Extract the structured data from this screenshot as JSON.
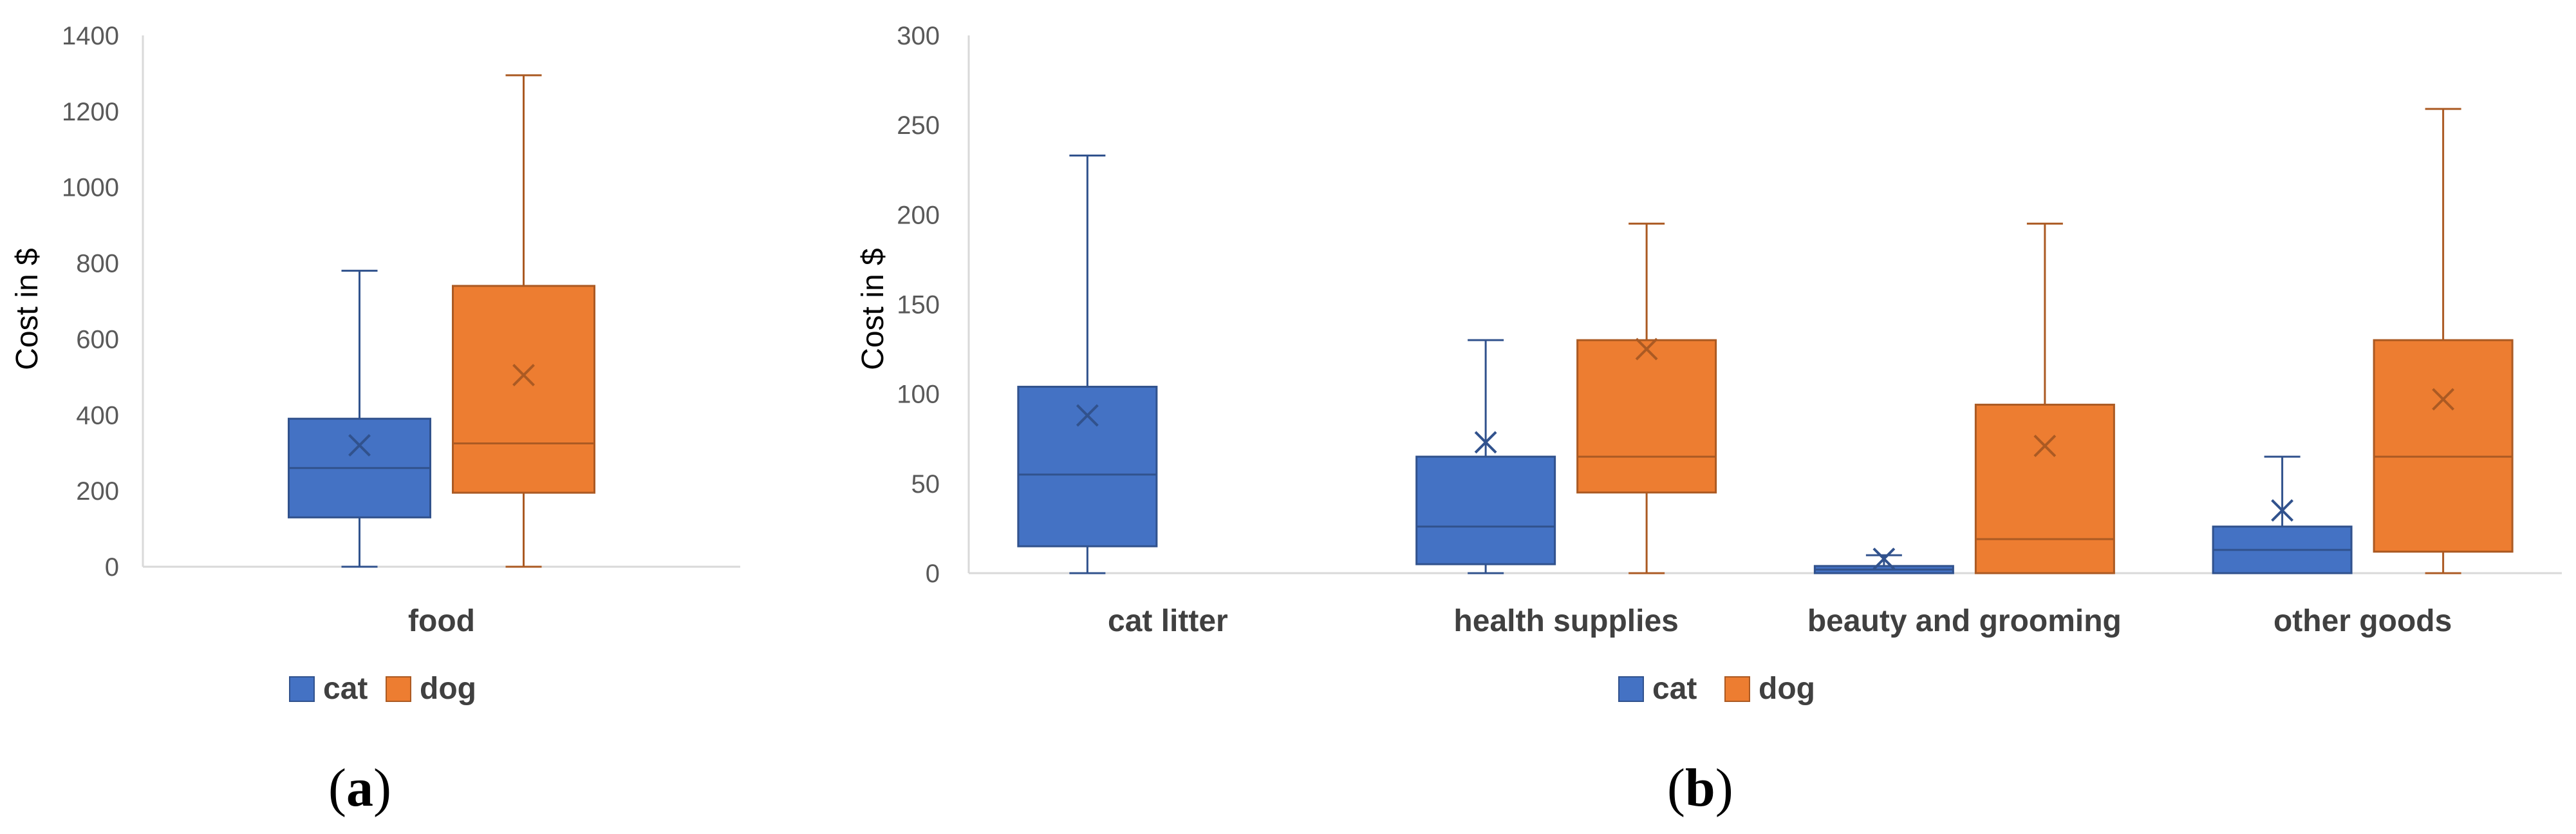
{
  "chart_data": [
    {
      "type": "box",
      "panel_label": "a",
      "ylabel": "Cost in $",
      "ylim": [
        0,
        1400
      ],
      "yticks": [
        0,
        200,
        400,
        600,
        800,
        1000,
        1200,
        1400
      ],
      "categories": [
        "food"
      ],
      "legend": [
        "cat",
        "dog"
      ],
      "series": [
        {
          "name": "cat",
          "color": "#4472C4",
          "boxes": [
            {
              "category": "food",
              "min": 0,
              "q1": 130,
              "median": 260,
              "q3": 390,
              "max": 780,
              "mean": 320
            }
          ]
        },
        {
          "name": "dog",
          "color": "#ED7D31",
          "boxes": [
            {
              "category": "food",
              "min": 0,
              "q1": 195,
              "median": 325,
              "q3": 740,
              "max": 1295,
              "mean": 505
            }
          ]
        }
      ]
    },
    {
      "type": "box",
      "panel_label": "b",
      "ylabel": "Cost in $",
      "ylim": [
        0,
        300
      ],
      "yticks": [
        0,
        50,
        100,
        150,
        200,
        250,
        300
      ],
      "categories": [
        "cat litter",
        "health supplies",
        "beauty and grooming",
        "other goods"
      ],
      "legend": [
        "cat",
        "dog"
      ],
      "series": [
        {
          "name": "cat",
          "color": "#4472C4",
          "boxes": [
            {
              "category": "cat litter",
              "min": 0,
              "q1": 15,
              "median": 55,
              "q3": 104,
              "max": 233,
              "mean": 88
            },
            {
              "category": "health supplies",
              "min": 0,
              "q1": 5,
              "median": 26,
              "q3": 65,
              "max": 130,
              "mean": 73
            },
            {
              "category": "beauty and grooming",
              "min": 0,
              "q1": 0,
              "median": 2,
              "q3": 4,
              "max": 10,
              "mean": 8
            },
            {
              "category": "other goods",
              "min": 0,
              "q1": 0,
              "median": 13,
              "q3": 26,
              "max": 65,
              "mean": 35
            }
          ]
        },
        {
          "name": "dog",
          "color": "#ED7D31",
          "boxes": [
            null,
            {
              "category": "health supplies",
              "min": 0,
              "q1": 45,
              "median": 65,
              "q3": 130,
              "max": 195,
              "mean": 125
            },
            {
              "category": "beauty and grooming",
              "min": 0,
              "q1": 0,
              "median": 19,
              "q3": 94,
              "max": 195,
              "mean": 71
            },
            {
              "category": "other goods",
              "min": 0,
              "q1": 12,
              "median": 65,
              "q3": 130,
              "max": 259,
              "mean": 97
            }
          ]
        }
      ]
    }
  ]
}
